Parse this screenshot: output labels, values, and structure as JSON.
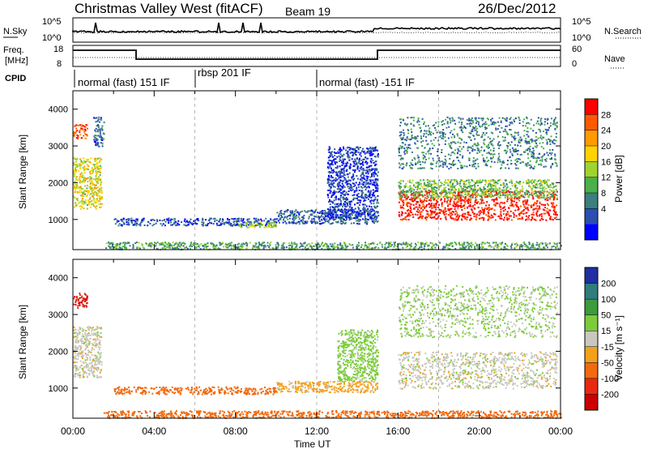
{
  "header": {
    "title": "Christmas Valley West (fitACF)",
    "beam": "Beam 19",
    "date": "26/Dec/2012"
  },
  "top_panels": {
    "nsky_label": "N.Sky",
    "nsky_ticks": [
      "10^5",
      "10^0"
    ],
    "nsearch_label": "N.Search",
    "nsearch_ticks": [
      "10^5",
      "10^0"
    ],
    "freq_label_1": "Freq.",
    "freq_label_2": "[MHz]",
    "freq_ticks": [
      "18",
      "8"
    ],
    "nave_label": "Nave",
    "nave_ticks": [
      "60",
      "0"
    ],
    "cpid_label": "CPID",
    "cpid_segments": [
      "normal (fast) 151 IF",
      "rbsp 201 IF",
      "normal (fast) -151 IF"
    ]
  },
  "axes": {
    "x_ticks": [
      "00:00",
      "04:00",
      "08:00",
      "12:00",
      "16:00",
      "20:00",
      "00:00"
    ],
    "x_label": "Time UT",
    "y_label": "Slant Range [km]",
    "y_ticks": [
      "1000",
      "2000",
      "3000",
      "4000"
    ]
  },
  "colorbars": {
    "power_label": "Power [dB]",
    "power_ticks": [
      "28",
      "24",
      "20",
      "16",
      "12",
      "8",
      "4"
    ],
    "power_colors": [
      "#ff0000",
      "#ff5a00",
      "#ff9a00",
      "#ffd200",
      "#9fd430",
      "#4bb04b",
      "#3d7e7e",
      "#2a4fb0",
      "#0000ff"
    ],
    "velocity_label": "Velocity [m s⁻¹]",
    "velocity_ticks": [
      "200",
      "100",
      "50",
      "15",
      "-15",
      "-50",
      "-100",
      "-200"
    ],
    "velocity_colors": [
      "#1f2fa0",
      "#2f7d7d",
      "#3d9a3d",
      "#7ccc3a",
      "#c8c8c0",
      "#f2a11e",
      "#f06a10",
      "#e62a10",
      "#cc0000"
    ]
  },
  "chart_data": [
    {
      "type": "heatmap",
      "title": "Power",
      "xlabel": "Time UT",
      "ylabel": "Slant Range [km]",
      "xlim": [
        0,
        24
      ],
      "ylim": [
        180,
        4500
      ],
      "colorbar": {
        "label": "Power [dB]",
        "ticks": [
          4,
          8,
          12,
          16,
          20,
          24,
          28
        ]
      },
      "regions": [
        {
          "t": [
            0.0,
            1.4
          ],
          "range": [
            1300,
            2700
          ],
          "level": 18
        },
        {
          "t": [
            0.0,
            0.7
          ],
          "range": [
            3200,
            3600
          ],
          "level": 26
        },
        {
          "t": [
            1.0,
            1.5
          ],
          "range": [
            3000,
            3800
          ],
          "level": 8
        },
        {
          "t": [
            2.0,
            10.0
          ],
          "range": [
            850,
            1050
          ],
          "level": 7
        },
        {
          "t": [
            8.0,
            10.0
          ],
          "range": [
            800,
            950
          ],
          "level": 16
        },
        {
          "t": [
            10.0,
            15.0
          ],
          "range": [
            900,
            1300
          ],
          "level": 8
        },
        {
          "t": [
            12.5,
            15.0
          ],
          "range": [
            1000,
            3000
          ],
          "level": 6
        },
        {
          "t": [
            16.0,
            23.8
          ],
          "range": [
            1000,
            1800
          ],
          "level": 28
        },
        {
          "t": [
            16.0,
            23.8
          ],
          "range": [
            1600,
            2100
          ],
          "level": 14
        },
        {
          "t": [
            16.0,
            23.8
          ],
          "range": [
            2400,
            3800
          ],
          "level": 10
        },
        {
          "t": [
            1.5,
            24.0
          ],
          "range": [
            200,
            400
          ],
          "level": 12
        }
      ]
    },
    {
      "type": "heatmap",
      "title": "Velocity",
      "xlabel": "Time UT",
      "ylabel": "Slant Range [km]",
      "xlim": [
        0,
        24
      ],
      "ylim": [
        180,
        4500
      ],
      "colorbar": {
        "label": "Velocity [m s⁻¹]",
        "ticks": [
          -200,
          -100,
          -50,
          -15,
          15,
          50,
          100,
          200
        ]
      },
      "regions": [
        {
          "t": [
            0.0,
            1.4
          ],
          "range": [
            1300,
            2700
          ],
          "level": 0
        },
        {
          "t": [
            0.0,
            0.7
          ],
          "range": [
            3200,
            3600
          ],
          "level": -200
        },
        {
          "t": [
            2.0,
            10.0
          ],
          "range": [
            850,
            1050
          ],
          "level": -70
        },
        {
          "t": [
            10.0,
            15.0
          ],
          "range": [
            900,
            1200
          ],
          "level": -30
        },
        {
          "t": [
            13.0,
            15.0
          ],
          "range": [
            1200,
            2600
          ],
          "level": 30
        },
        {
          "t": [
            16.0,
            23.8
          ],
          "range": [
            1000,
            2000
          ],
          "level": 0
        },
        {
          "t": [
            16.0,
            23.8
          ],
          "range": [
            2400,
            3800
          ],
          "level": 20
        },
        {
          "t": [
            1.5,
            24.0
          ],
          "range": [
            200,
            400
          ],
          "level": -70
        }
      ]
    }
  ]
}
